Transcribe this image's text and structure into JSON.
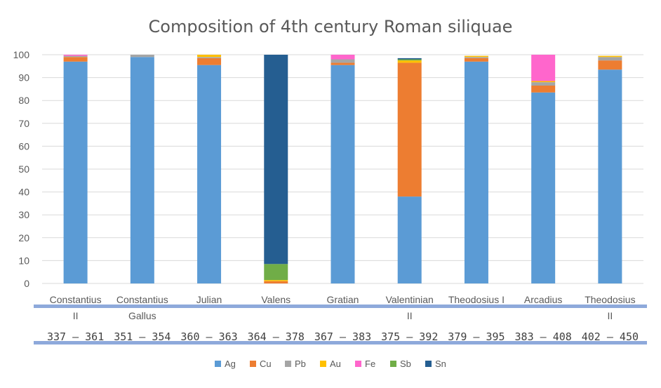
{
  "chart_data": {
    "type": "bar",
    "stacked": true,
    "title": "Composition of 4th century Roman siliquae",
    "xlabel": "",
    "ylabel": "",
    "ylim": [
      0,
      100
    ],
    "yticks": [
      0,
      10,
      20,
      30,
      40,
      50,
      60,
      70,
      80,
      90,
      100
    ],
    "grid": true,
    "legend_position": "bottom",
    "categories": [
      [
        "Constantius",
        "II"
      ],
      [
        "Constantius",
        "Gallus"
      ],
      [
        "Julian"
      ],
      [
        "Valens"
      ],
      [
        "Gratian"
      ],
      [
        "Valentinian",
        "II"
      ],
      [
        "Theodosius I"
      ],
      [
        "Arcadius"
      ],
      [
        "Theodosius",
        "II"
      ]
    ],
    "date_ranges": [
      "337 – 361",
      "351 – 354",
      "360 – 363",
      "364 – 378",
      "367 – 383",
      "375 – 392",
      "379 – 395",
      "383 – 408",
      "402 – 450"
    ],
    "series": [
      {
        "name": "Ag",
        "color": "#5B9BD5",
        "values": [
          97,
          99,
          95.5,
          0,
          95.5,
          38,
          97,
          83.5,
          93.5
        ]
      },
      {
        "name": "Cu",
        "color": "#ED7D31",
        "values": [
          2,
          0,
          3,
          1,
          1,
          58.5,
          1.5,
          3,
          4
        ]
      },
      {
        "name": "Pb",
        "color": "#A5A5A5",
        "values": [
          0.5,
          1,
          0.5,
          0,
          1.5,
          0,
          0.5,
          1.5,
          1.5
        ]
      },
      {
        "name": "Au",
        "color": "#FFC000",
        "values": [
          0,
          0,
          1,
          0.5,
          0,
          1,
          0.5,
          0.5,
          0.5
        ]
      },
      {
        "name": "Fe",
        "color": "#FF66CC",
        "values": [
          0.5,
          0,
          0,
          0,
          2,
          0,
          0,
          11.5,
          0
        ]
      },
      {
        "name": "Sb",
        "color": "#70AD47",
        "values": [
          0,
          0,
          0,
          7,
          0,
          0.5,
          0,
          0,
          0
        ]
      },
      {
        "name": "Sn",
        "color": "#255E91",
        "values": [
          0,
          0,
          0,
          91.5,
          0,
          0.5,
          0,
          0,
          0
        ]
      }
    ],
    "band_color": "#8EA9DB",
    "grid_color": "#D9D9D9"
  }
}
